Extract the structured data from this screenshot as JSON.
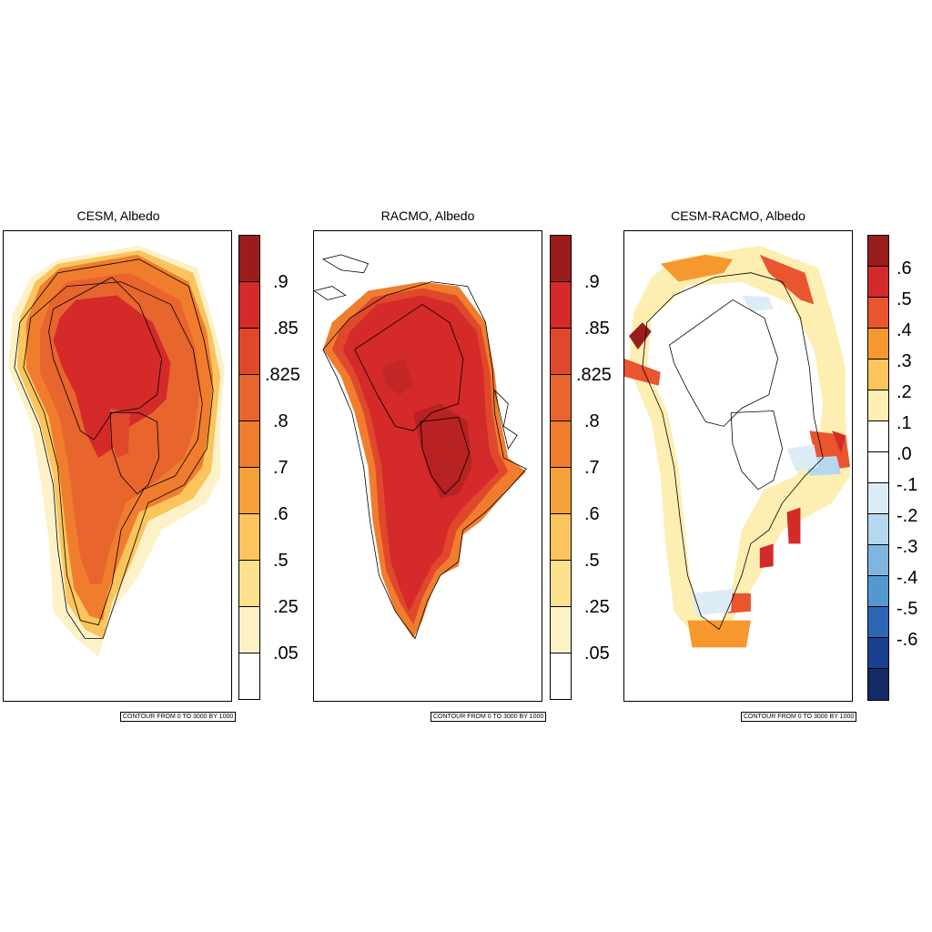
{
  "panels": [
    {
      "title": "CESM, Albedo",
      "contour_note": "CONTOUR FROM 0 TO 3000 BY 1000"
    },
    {
      "title": "RACMO, Albedo",
      "contour_note": "CONTOUR FROM 0 TO 3000 BY 1000"
    },
    {
      "title": "CESM-RACMO, Albedo",
      "contour_note": "CONTOUR FROM 0 TO 3000 BY 1000"
    }
  ],
  "albedo_colorbar": {
    "labels": [
      ".9",
      ".85",
      ".825",
      ".8",
      ".7",
      ".6",
      ".5",
      ".25",
      ".05"
    ],
    "colors": [
      "#9b1c1c",
      "#d42a2a",
      "#e0482c",
      "#e8652e",
      "#f07d2e",
      "#f7a13b",
      "#fbc45c",
      "#fce08e",
      "#fdf1c8",
      "#ffffff"
    ]
  },
  "diff_colorbar": {
    "labels": [
      ".6",
      ".5",
      ".4",
      ".3",
      ".2",
      ".1",
      ".0",
      "-.1",
      "-.2",
      "-.3",
      "-.4",
      "-.5",
      "-.6"
    ],
    "colors": [
      "#9b1c1c",
      "#d42a2a",
      "#e8552e",
      "#f7982e",
      "#fbc45c",
      "#fdeeb2",
      "#ffffff",
      "#ffffff",
      "#dcecf7",
      "#b6d8ef",
      "#7fb6e0",
      "#5598d0",
      "#2e66b3",
      "#1a3f8f",
      "#142a66"
    ]
  }
}
